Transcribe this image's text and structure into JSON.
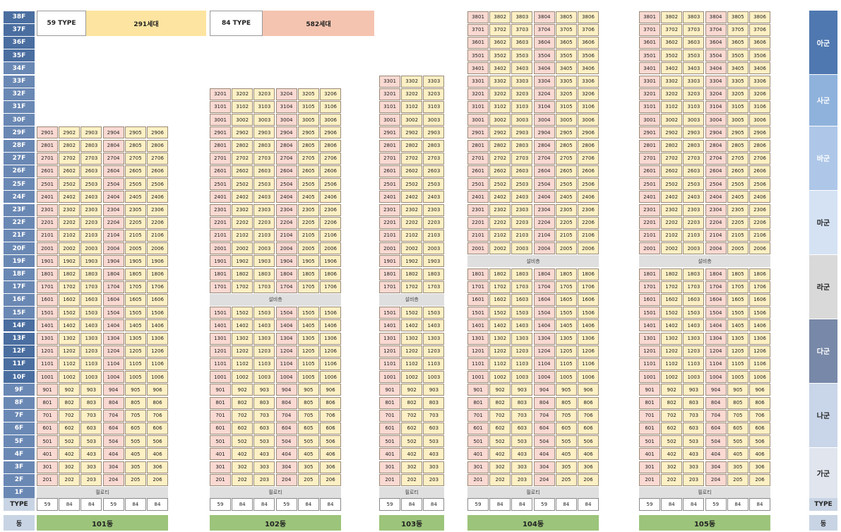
{
  "legend": [
    {
      "type_label": "59 TYPE",
      "count_label": "291세대"
    },
    {
      "type_label": "84 TYPE",
      "count_label": "582세대"
    }
  ],
  "floor_labels": [
    "38F",
    "37F",
    "36F",
    "35F",
    "34F",
    "33F",
    "32F",
    "31F",
    "30F",
    "29F",
    "28F",
    "27F",
    "26F",
    "25F",
    "24F",
    "23F",
    "22F",
    "21F",
    "20F",
    "19F",
    "18F",
    "17F",
    "16F",
    "15F",
    "14F",
    "13F",
    "12F",
    "11F",
    "10F",
    "9F",
    "8F",
    "7F",
    "6F",
    "5F",
    "4F",
    "3F",
    "2F",
    "1F"
  ],
  "groups": [
    "아군",
    "사군",
    "바군",
    "마군",
    "라군",
    "다군",
    "나군",
    "가군"
  ],
  "utility_label": "설비층",
  "pilotis_label": "필로티",
  "type_row_label": "TYPE",
  "dong_row_label": "동",
  "colors": {
    "type59": "#f9d9d2",
    "type84": "#fdf0c4",
    "floor_label": "#6a88b4",
    "dong_bar": "#9cc47a",
    "utility": "#dfdfdf"
  },
  "buildings": [
    {
      "name": "101동",
      "top_floor": 29,
      "utility_floor": null,
      "unit_types": [
        "59",
        "84",
        "84",
        "59",
        "84",
        "84"
      ]
    },
    {
      "name": "102동",
      "top_floor": 32,
      "utility_floor": 16,
      "unit_types": [
        "59",
        "84",
        "84",
        "59",
        "84",
        "84"
      ]
    },
    {
      "name": "103동",
      "top_floor": 33,
      "utility_floor": 16,
      "unit_types": [
        "59",
        "84",
        "84"
      ]
    },
    {
      "name": "104동",
      "top_floor": 38,
      "utility_floor": 19,
      "unit_types": [
        "59",
        "84",
        "84",
        "59",
        "84",
        "84"
      ]
    },
    {
      "name": "105동",
      "top_floor": 38,
      "utility_floor": 19,
      "unit_types": [
        "59",
        "84",
        "84",
        "59",
        "84",
        "84"
      ]
    }
  ]
}
